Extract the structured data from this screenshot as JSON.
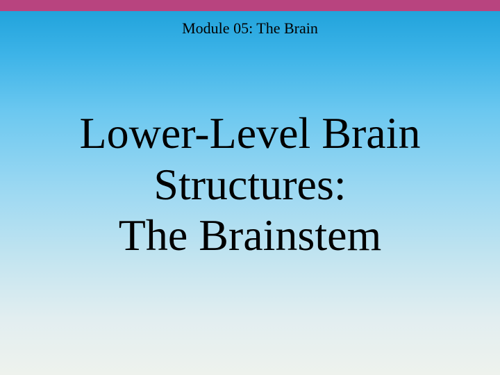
{
  "slide": {
    "top_bar_color": "#b8447f",
    "gradient_top": "#1a9fd9",
    "gradient_bottom": "#eef2ed",
    "module_header": "Module 05: The Brain",
    "title_line1": "Lower-Level Brain",
    "title_line2": "Structures:",
    "title_line3": "The Brainstem",
    "header_fontsize": 22,
    "title_fontsize": 64,
    "text_color": "#000000",
    "font_family": "Times New Roman"
  }
}
